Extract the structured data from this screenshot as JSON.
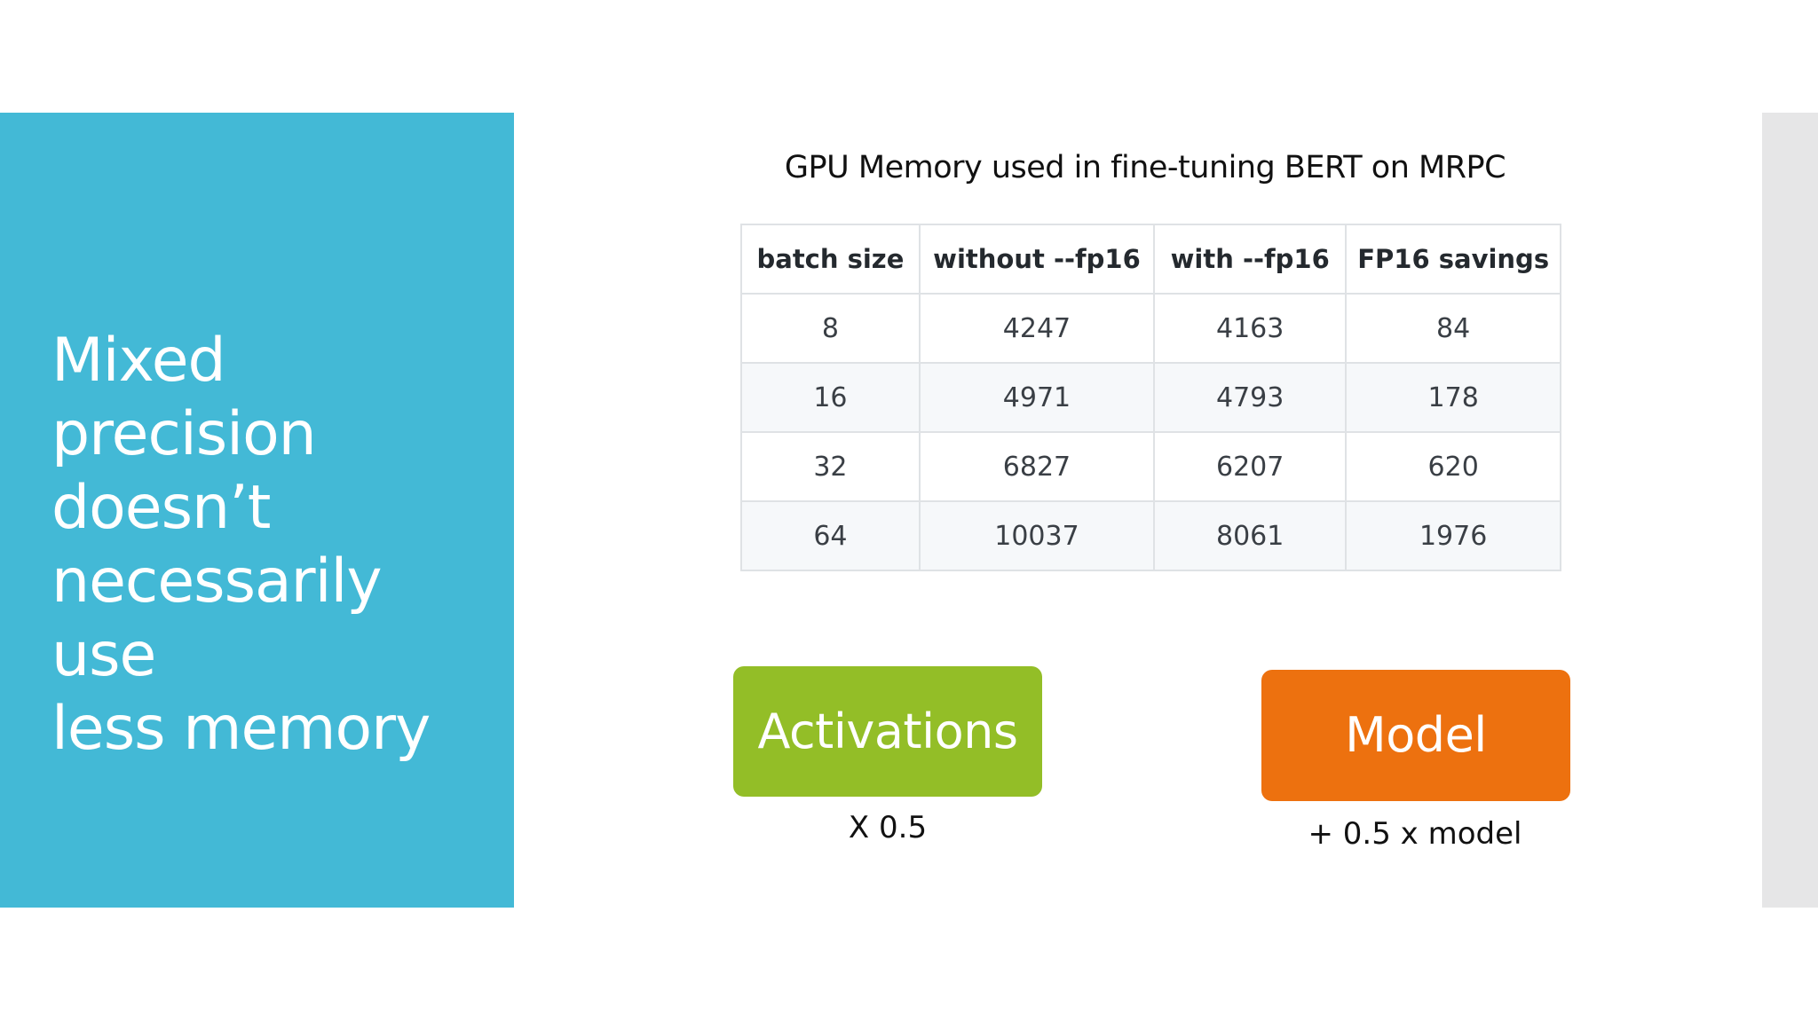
{
  "left_panel": {
    "title": "Mixed\nprecision\ndoesn’t\nnecessarily use\nless memory",
    "color": "#43b9d6"
  },
  "table": {
    "caption": "GPU Memory used in fine-tuning BERT on MRPC",
    "headers": [
      "batch size",
      "without --fp16",
      "with --fp16",
      "FP16 savings"
    ],
    "rows": [
      [
        "8",
        "4247",
        "4163",
        "84"
      ],
      [
        "16",
        "4971",
        "4793",
        "178"
      ],
      [
        "32",
        "6827",
        "6207",
        "620"
      ],
      [
        "64",
        "10037",
        "8061",
        "1976"
      ]
    ]
  },
  "boxes": {
    "activations": {
      "label": "Activations",
      "note": "X 0.5",
      "color": "#93be27"
    },
    "model": {
      "label": "Model",
      "note": "+ 0.5 x model",
      "color": "#ed710f"
    }
  }
}
